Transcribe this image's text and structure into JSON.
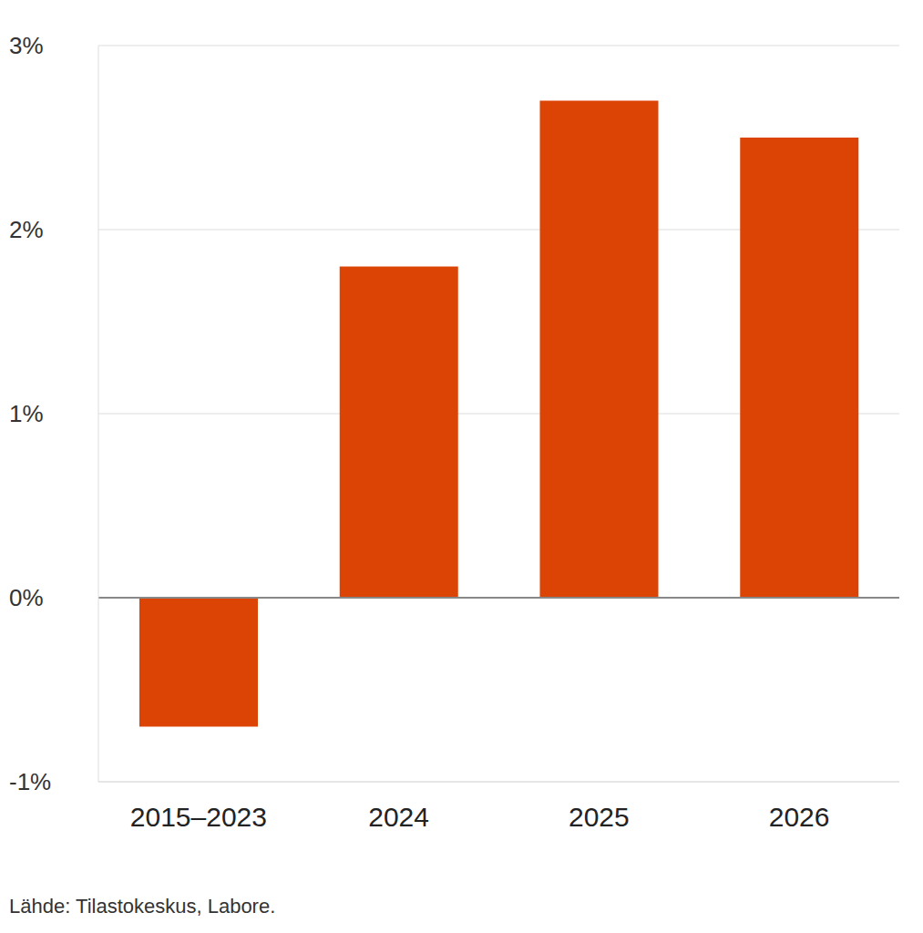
{
  "chart_data": {
    "type": "bar",
    "categories": [
      "2015–2023",
      "2024",
      "2025",
      "2026"
    ],
    "values": [
      -0.7,
      1.8,
      2.7,
      2.5
    ],
    "color": "#dc4405",
    "ylim": [
      -1,
      3
    ],
    "yticks": [
      {
        "value": -1,
        "label": "-1%"
      },
      {
        "value": 0,
        "label": "0%"
      },
      {
        "value": 1,
        "label": "1%"
      },
      {
        "value": 2,
        "label": "2%"
      },
      {
        "value": 3,
        "label": "3%"
      }
    ],
    "grid": true,
    "source": "Lähde: Tilastokeskus, Labore."
  }
}
